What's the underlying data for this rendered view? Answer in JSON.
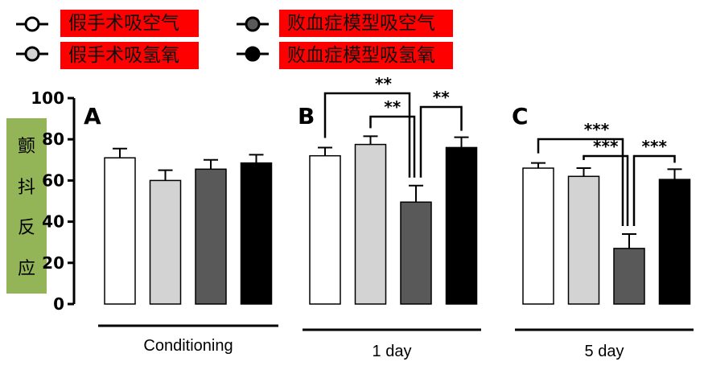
{
  "legend": [
    {
      "label": "假手术吸空气",
      "fill": "#ffffff"
    },
    {
      "label": "败血症模型吸空气",
      "fill": "#595959"
    },
    {
      "label": "假手术吸氢氧",
      "fill": "#d3d3d3"
    },
    {
      "label": "败血症模型吸氢氧",
      "fill": "#000000"
    }
  ],
  "ylabel_chars": [
    "颤",
    "抖",
    "反",
    "应"
  ],
  "chart_data": {
    "type": "bar",
    "ylim": [
      0,
      100
    ],
    "yticks": [
      0,
      20,
      40,
      60,
      80,
      100
    ],
    "grid": false,
    "series_colors": [
      "#ffffff",
      "#d3d3d3",
      "#595959",
      "#000000"
    ],
    "panels": [
      {
        "letter": "A",
        "group": "Conditioning",
        "values": [
          71,
          60,
          65.5,
          68.5
        ],
        "errors": [
          4.5,
          5,
          4.5,
          4
        ],
        "significance": []
      },
      {
        "letter": "B",
        "group": "1 day",
        "values": [
          72,
          77.5,
          49.5,
          76
        ],
        "errors": [
          4,
          4,
          8,
          5
        ],
        "significance": [
          {
            "from": 0,
            "to": 2,
            "label": "**"
          },
          {
            "from": 1,
            "to": 2,
            "label": "**"
          },
          {
            "from": 2,
            "to": 3,
            "label": "**"
          }
        ]
      },
      {
        "letter": "C",
        "group": "5 day",
        "values": [
          66,
          62,
          27,
          60.5
        ],
        "errors": [
          2.5,
          4,
          7,
          5
        ],
        "significance": [
          {
            "from": 0,
            "to": 2,
            "label": "***"
          },
          {
            "from": 1,
            "to": 2,
            "label": "***"
          },
          {
            "from": 2,
            "to": 3,
            "label": "***"
          }
        ]
      }
    ]
  }
}
